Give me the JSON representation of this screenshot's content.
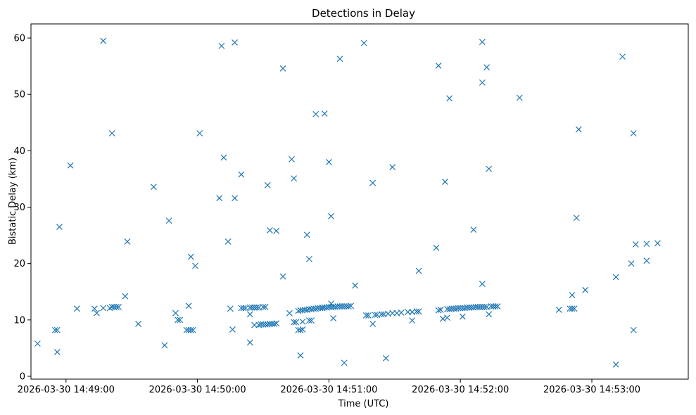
{
  "chart_data": {
    "type": "scatter",
    "title": "Detections in Delay",
    "xlabel": "Time (UTC)",
    "ylabel": "Bistatic Delay (km)",
    "marker": "x",
    "color": "#1f77b4",
    "x_tick_labels": [
      "2026-03-30 14:49:00",
      "2026-03-30 14:50:00",
      "2026-03-30 14:51:00",
      "2026-03-30 14:52:00",
      "2026-03-30 14:53:00"
    ],
    "y_ticks": [
      0,
      10,
      20,
      30,
      40,
      50,
      60
    ],
    "xlim": [
      "2026-03-30 14:48:44",
      "2026-03-30 14:53:44"
    ],
    "ylim": [
      -0.5,
      62.5
    ],
    "grid": false,
    "points": [
      [
        "14:48:47",
        5.8
      ],
      [
        "14:48:55",
        8.2
      ],
      [
        "14:48:56",
        8.2
      ],
      [
        "14:48:56",
        4.3
      ],
      [
        "14:48:57",
        26.5
      ],
      [
        "14:49:02",
        37.4
      ],
      [
        "14:49:05",
        12.0
      ],
      [
        "14:49:13",
        12.0
      ],
      [
        "14:49:14",
        11.2
      ],
      [
        "14:49:17",
        12.1
      ],
      [
        "14:49:17",
        59.5
      ],
      [
        "14:49:20",
        12.1
      ],
      [
        "14:49:21",
        43.1
      ],
      [
        "14:49:21",
        12.3
      ],
      [
        "14:49:22",
        12.3
      ],
      [
        "14:49:23",
        12.3
      ],
      [
        "14:49:24",
        12.3
      ],
      [
        "14:49:27",
        14.2
      ],
      [
        "14:49:28",
        23.9
      ],
      [
        "14:49:33",
        9.3
      ],
      [
        "14:49:40",
        33.6
      ],
      [
        "14:49:45",
        5.5
      ],
      [
        "14:49:47",
        27.6
      ],
      [
        "14:49:50",
        11.2
      ],
      [
        "14:49:51",
        10.0
      ],
      [
        "14:49:52",
        10.0
      ],
      [
        "14:49:55",
        8.2
      ],
      [
        "14:49:56",
        12.5
      ],
      [
        "14:49:56",
        8.2
      ],
      [
        "14:49:57",
        21.2
      ],
      [
        "14:49:57",
        8.2
      ],
      [
        "14:49:58",
        8.2
      ],
      [
        "14:49:59",
        19.6
      ],
      [
        "14:50:01",
        43.1
      ],
      [
        "14:50:10",
        31.6
      ],
      [
        "14:50:11",
        58.6
      ],
      [
        "14:50:12",
        38.8
      ],
      [
        "14:50:14",
        23.9
      ],
      [
        "14:50:15",
        12.0
      ],
      [
        "14:50:16",
        8.3
      ],
      [
        "14:50:17",
        59.2
      ],
      [
        "14:50:17",
        31.6
      ],
      [
        "14:50:20",
        12.1
      ],
      [
        "14:50:20",
        35.8
      ],
      [
        "14:50:21",
        12.1
      ],
      [
        "14:50:22",
        12.1
      ],
      [
        "14:50:24",
        12.2
      ],
      [
        "14:50:24",
        11.0
      ],
      [
        "14:50:24",
        6.0
      ],
      [
        "14:50:25",
        12.2
      ],
      [
        "14:50:26",
        12.2
      ],
      [
        "14:50:26",
        9.1
      ],
      [
        "14:50:27",
        12.2
      ],
      [
        "14:50:28",
        9.1
      ],
      [
        "14:50:28",
        12.2
      ],
      [
        "14:50:29",
        9.2
      ],
      [
        "14:50:30",
        12.3
      ],
      [
        "14:50:30",
        9.2
      ],
      [
        "14:50:31",
        12.3
      ],
      [
        "14:50:31",
        9.2
      ],
      [
        "14:50:32",
        33.9
      ],
      [
        "14:50:32",
        9.2
      ],
      [
        "14:50:33",
        25.9
      ],
      [
        "14:50:33",
        9.3
      ],
      [
        "14:50:34",
        9.3
      ],
      [
        "14:50:35",
        9.3
      ],
      [
        "14:50:36",
        25.8
      ],
      [
        "14:50:36",
        9.4
      ],
      [
        "14:50:39",
        17.7
      ],
      [
        "14:50:39",
        54.6
      ],
      [
        "14:50:42",
        11.2
      ],
      [
        "14:50:43",
        38.5
      ],
      [
        "14:50:44",
        35.1
      ],
      [
        "14:50:44",
        9.6
      ],
      [
        "14:50:45",
        9.6
      ],
      [
        "14:50:46",
        11.6
      ],
      [
        "14:50:46",
        8.2
      ],
      [
        "14:50:47",
        3.7
      ],
      [
        "14:50:47",
        8.2
      ],
      [
        "14:50:47",
        11.7
      ],
      [
        "14:50:48",
        8.3
      ],
      [
        "14:50:48",
        9.7
      ],
      [
        "14:50:48",
        11.7
      ],
      [
        "14:50:49",
        11.8
      ],
      [
        "14:50:50",
        25.1
      ],
      [
        "14:50:50",
        11.8
      ],
      [
        "14:50:51",
        9.9
      ],
      [
        "14:50:51",
        11.9
      ],
      [
        "14:50:51",
        20.8
      ],
      [
        "14:50:52",
        9.9
      ],
      [
        "14:50:52",
        11.9
      ],
      [
        "14:50:53",
        12.0
      ],
      [
        "14:50:54",
        46.5
      ],
      [
        "14:50:54",
        12.0
      ],
      [
        "14:50:55",
        12.1
      ],
      [
        "14:50:56",
        12.1
      ],
      [
        "14:50:57",
        12.1
      ],
      [
        "14:50:57",
        12.2
      ],
      [
        "14:50:58",
        46.6
      ],
      [
        "14:50:58",
        12.2
      ],
      [
        "14:50:59",
        12.2
      ],
      [
        "14:51:00",
        12.3
      ],
      [
        "14:51:00",
        38.0
      ],
      [
        "14:51:01",
        12.3
      ],
      [
        "14:51:01",
        28.4
      ],
      [
        "14:51:01",
        12.9
      ],
      [
        "14:51:02",
        12.3
      ],
      [
        "14:51:02",
        10.3
      ],
      [
        "14:51:03",
        12.3
      ],
      [
        "14:51:04",
        12.4
      ],
      [
        "14:51:05",
        56.3
      ],
      [
        "14:51:05",
        12.4
      ],
      [
        "14:51:06",
        12.4
      ],
      [
        "14:51:07",
        12.4
      ],
      [
        "14:51:07",
        2.4
      ],
      [
        "14:51:08",
        12.4
      ],
      [
        "14:51:09",
        12.4
      ],
      [
        "14:51:10",
        12.5
      ],
      [
        "14:51:12",
        16.1
      ],
      [
        "14:51:16",
        59.1
      ],
      [
        "14:51:17",
        10.8
      ],
      [
        "14:51:18",
        10.8
      ],
      [
        "14:51:20",
        9.3
      ],
      [
        "14:51:20",
        34.3
      ],
      [
        "14:51:21",
        10.9
      ],
      [
        "14:51:22",
        10.9
      ],
      [
        "14:51:24",
        11.0
      ],
      [
        "14:51:25",
        11.0
      ],
      [
        "14:51:26",
        3.2
      ],
      [
        "14:51:27",
        11.1
      ],
      [
        "14:51:29",
        37.1
      ],
      [
        "14:51:29",
        11.2
      ],
      [
        "14:51:31",
        11.2
      ],
      [
        "14:51:33",
        11.3
      ],
      [
        "14:51:36",
        11.4
      ],
      [
        "14:51:38",
        11.4
      ],
      [
        "14:51:38",
        9.9
      ],
      [
        "14:51:40",
        11.5
      ],
      [
        "14:51:41",
        11.5
      ],
      [
        "14:51:41",
        18.7
      ],
      [
        "14:51:49",
        22.8
      ],
      [
        "14:51:50",
        55.1
      ],
      [
        "14:51:50",
        11.7
      ],
      [
        "14:51:51",
        11.8
      ],
      [
        "14:51:52",
        10.2
      ],
      [
        "14:51:53",
        34.5
      ],
      [
        "14:51:54",
        11.9
      ],
      [
        "14:51:54",
        10.4
      ],
      [
        "14:51:55",
        49.3
      ],
      [
        "14:51:55",
        11.9
      ],
      [
        "14:51:56",
        12.0
      ],
      [
        "14:51:57",
        12.0
      ],
      [
        "14:51:58",
        12.0
      ],
      [
        "14:51:59",
        12.1
      ],
      [
        "14:52:00",
        12.1
      ],
      [
        "14:52:01",
        12.1
      ],
      [
        "14:52:01",
        10.6
      ],
      [
        "14:52:02",
        12.1
      ],
      [
        "14:52:03",
        12.2
      ],
      [
        "14:52:04",
        12.2
      ],
      [
        "14:52:05",
        12.2
      ],
      [
        "14:52:06",
        26.0
      ],
      [
        "14:52:06",
        12.2
      ],
      [
        "14:52:07",
        12.3
      ],
      [
        "14:52:08",
        12.3
      ],
      [
        "14:52:09",
        12.3
      ],
      [
        "14:52:10",
        59.3
      ],
      [
        "14:52:10",
        52.1
      ],
      [
        "14:52:10",
        16.4
      ],
      [
        "14:52:10",
        12.3
      ],
      [
        "14:52:11",
        12.3
      ],
      [
        "14:52:12",
        54.8
      ],
      [
        "14:52:12",
        12.3
      ],
      [
        "14:52:13",
        36.8
      ],
      [
        "14:52:13",
        11.0
      ],
      [
        "14:52:14",
        12.4
      ],
      [
        "14:52:15",
        12.4
      ],
      [
        "14:52:16",
        12.4
      ],
      [
        "14:52:17",
        12.4
      ],
      [
        "14:52:27",
        49.4
      ],
      [
        "14:52:45",
        11.8
      ],
      [
        "14:52:50",
        12.0
      ],
      [
        "14:52:51",
        12.0
      ],
      [
        "14:52:51",
        14.4
      ],
      [
        "14:52:52",
        12.0
      ],
      [
        "14:52:53",
        28.1
      ],
      [
        "14:52:54",
        43.8
      ],
      [
        "14:52:57",
        15.3
      ],
      [
        "14:53:11",
        2.1
      ],
      [
        "14:53:11",
        17.6
      ],
      [
        "14:53:14",
        56.7
      ],
      [
        "14:53:18",
        20.0
      ],
      [
        "14:53:19",
        43.1
      ],
      [
        "14:53:19",
        8.2
      ],
      [
        "14:53:20",
        23.4
      ],
      [
        "14:53:25",
        23.5
      ],
      [
        "14:53:25",
        20.5
      ],
      [
        "14:53:30",
        23.6
      ]
    ]
  }
}
